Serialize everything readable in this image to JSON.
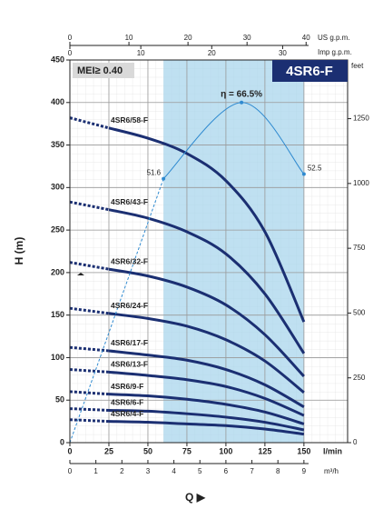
{
  "chart_data": {
    "type": "line",
    "title": "4SR6-F",
    "annotation": "MEI≥ 0.40",
    "y_label": "H (m)",
    "x_label": "Q ▶",
    "x_unit": "l/min",
    "xlim": [
      0,
      178
    ],
    "xticks": [
      0,
      25,
      50,
      75,
      100,
      125,
      150
    ],
    "ylim": [
      0,
      450
    ],
    "yticks": [
      0,
      50,
      100,
      150,
      200,
      250,
      300,
      350,
      400,
      450
    ],
    "y2_label": "feet",
    "y2lim": [
      0,
      1476.4
    ],
    "y2ticks": [
      0,
      250,
      500,
      750,
      1000,
      1250
    ],
    "top_axes": [
      {
        "label": "US g.p.m.",
        "lim": [
          0,
          47.03
        ],
        "ticks": [
          0,
          10,
          20,
          30,
          40
        ]
      },
      {
        "label": "Imp g.p.m.",
        "lim": [
          0,
          39.16
        ],
        "ticks": [
          0,
          10,
          20,
          30
        ]
      }
    ],
    "bottom_axis": {
      "label": "m³/h",
      "lim": [
        0,
        10.68
      ],
      "ticks": [
        0,
        1,
        2,
        3,
        4,
        5,
        6,
        7,
        8,
        9
      ]
    },
    "grid": true,
    "shaded_region": [
      60,
      150
    ],
    "dashed_below": 25,
    "x": [
      0,
      25,
      50,
      75,
      100,
      125,
      150
    ],
    "series": [
      {
        "name": "4SR6/58-F",
        "color": "#1b2f72",
        "values": [
          382,
          370,
          358,
          340,
          308,
          248,
          142
        ]
      },
      {
        "name": "4SR6/43-F",
        "color": "#1b2f72",
        "values": [
          283,
          274,
          264,
          248,
          222,
          175,
          105
        ]
      },
      {
        "name": "4SR6/32-F",
        "color": "#1b2f72",
        "values": [
          212,
          204,
          196,
          183,
          162,
          127,
          78
        ]
      },
      {
        "name": "4SR6/24-F",
        "color": "#1b2f72",
        "values": [
          158,
          152,
          146,
          137,
          121,
          96,
          59
        ]
      },
      {
        "name": "4SR6/17-F",
        "color": "#1b2f72",
        "values": [
          112,
          108,
          103,
          97,
          86,
          68,
          42
        ]
      },
      {
        "name": "4SR6/13-F",
        "color": "#1b2f72",
        "values": [
          86,
          83,
          79,
          74,
          66,
          52,
          32
        ]
      },
      {
        "name": "4SR6/9-F",
        "color": "#1b2f72",
        "values": [
          60,
          57,
          55,
          51,
          45,
          36,
          22
        ]
      },
      {
        "name": "4SR6/6-F",
        "color": "#1b2f72",
        "values": [
          40,
          38,
          37,
          34,
          30,
          24,
          15
        ]
      },
      {
        "name": "4SR6/4-F",
        "color": "#1b2f72",
        "values": [
          27,
          25,
          24,
          22,
          20,
          16,
          10
        ]
      }
    ],
    "efficiency": {
      "color": "#2f8ad0",
      "lim": [
        0,
        74.8
      ],
      "dashed_below": 60,
      "x": [
        0,
        60,
        110,
        150
      ],
      "values": [
        0,
        51.6,
        66.5,
        52.5
      ],
      "value_labels": [
        null,
        "51.6",
        "η = 66.5%",
        "52.5"
      ]
    }
  }
}
